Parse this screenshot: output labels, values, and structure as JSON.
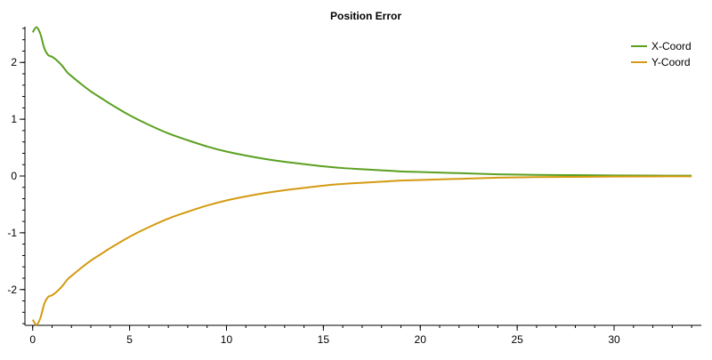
{
  "chart_data": {
    "type": "line",
    "title": "Position Error",
    "xlabel": "",
    "ylabel": "",
    "xlim": [
      -0.4,
      34.5
    ],
    "ylim": [
      -2.63,
      2.63
    ],
    "x_ticks": [
      0,
      5,
      10,
      15,
      20,
      25,
      30
    ],
    "x_tick_labels": [
      "0",
      "5",
      "10",
      "15",
      "20",
      "25",
      "30"
    ],
    "x_minor_step": 1,
    "y_ticks": [
      -2,
      -1,
      0,
      1,
      2
    ],
    "y_tick_labels": [
      "-2",
      "-1",
      "0",
      "1",
      "2"
    ],
    "y_minor_step": 0.2,
    "grid": false,
    "legend_position": "top-right",
    "x": [
      0,
      0.2,
      0.4,
      0.6,
      0.8,
      1.0,
      1.2,
      1.5,
      1.8,
      2.0,
      2.5,
      3.0,
      3.5,
      4,
      5,
      6,
      7,
      8,
      9,
      10,
      11,
      12,
      13,
      14,
      15,
      16,
      17,
      18,
      19,
      20,
      22,
      24,
      26,
      28,
      30,
      32,
      34
    ],
    "series": [
      {
        "name": "X-Coord",
        "color": "#5aa020",
        "values": [
          2.53,
          2.62,
          2.5,
          2.25,
          2.13,
          2.1,
          2.05,
          1.95,
          1.82,
          1.76,
          1.62,
          1.49,
          1.38,
          1.27,
          1.07,
          0.9,
          0.75,
          0.63,
          0.52,
          0.43,
          0.36,
          0.3,
          0.25,
          0.21,
          0.17,
          0.14,
          0.12,
          0.1,
          0.08,
          0.07,
          0.05,
          0.03,
          0.02,
          0.015,
          0.01,
          0.007,
          0.005
        ]
      },
      {
        "name": "Y-Coord",
        "color": "#d49a10",
        "values": [
          -2.53,
          -2.62,
          -2.5,
          -2.25,
          -2.13,
          -2.1,
          -2.05,
          -1.95,
          -1.82,
          -1.76,
          -1.62,
          -1.49,
          -1.38,
          -1.27,
          -1.07,
          -0.9,
          -0.75,
          -0.63,
          -0.52,
          -0.43,
          -0.36,
          -0.3,
          -0.25,
          -0.21,
          -0.17,
          -0.14,
          -0.12,
          -0.1,
          -0.08,
          -0.07,
          -0.05,
          -0.03,
          -0.02,
          -0.015,
          -0.01,
          -0.007,
          -0.005
        ]
      }
    ]
  }
}
